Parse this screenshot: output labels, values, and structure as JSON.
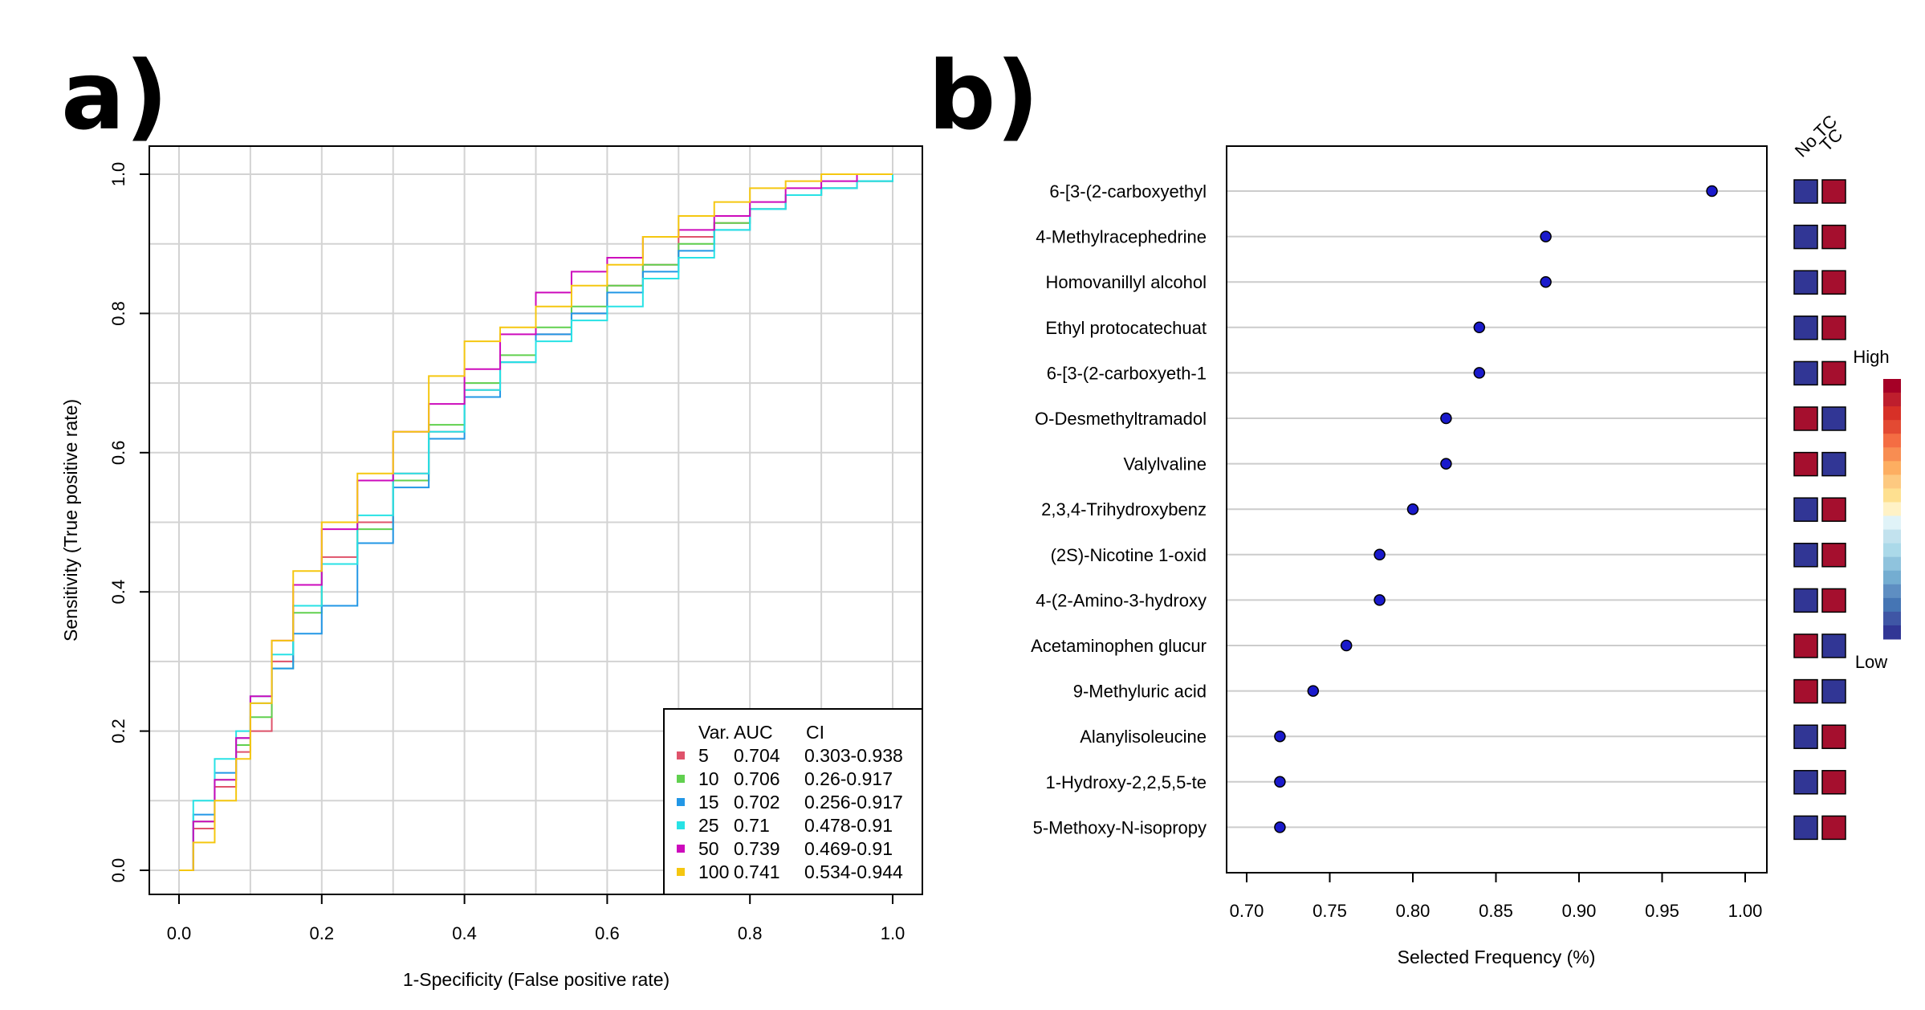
{
  "panels": {
    "a": {
      "label": "a)"
    },
    "b": {
      "label": "b)"
    }
  },
  "chart_data": [
    {
      "type": "line",
      "xlabel": "1-Specificity (False positive rate)",
      "ylabel": "Sensitivity (True positive rate)",
      "xlim": [
        0,
        1
      ],
      "ylim": [
        0,
        1
      ],
      "xticks": [
        "0.0",
        "0.2",
        "0.4",
        "0.6",
        "0.8",
        "1.0"
      ],
      "yticks": [
        "0.0",
        "0.2",
        "0.4",
        "0.6",
        "0.8",
        "1.0"
      ],
      "grid": true,
      "legend": {
        "placement": "bottom-right",
        "header": {
          "var": "Var.",
          "auc": "AUC",
          "ci": "CI"
        }
      },
      "series": [
        {
          "name": "5",
          "auc": "0.704",
          "ci": "0.303-0.938",
          "color": "#DF536B",
          "x": [
            0,
            0.02,
            0.05,
            0.08,
            0.1,
            0.13,
            0.16,
            0.2,
            0.25,
            0.3,
            0.35,
            0.4,
            0.45,
            0.5,
            0.55,
            0.6,
            0.65,
            0.7,
            0.75,
            0.8,
            0.85,
            0.9,
            0.95,
            1.0
          ],
          "y": [
            0,
            0.06,
            0.12,
            0.17,
            0.2,
            0.3,
            0.38,
            0.45,
            0.5,
            0.57,
            0.63,
            0.69,
            0.73,
            0.77,
            0.8,
            0.84,
            0.87,
            0.91,
            0.93,
            0.95,
            0.97,
            0.98,
            0.99,
            1.0
          ]
        },
        {
          "name": "10",
          "auc": "0.706",
          "ci": "0.26-0.917",
          "color": "#61D04F",
          "x": [
            0,
            0.02,
            0.05,
            0.08,
            0.1,
            0.13,
            0.16,
            0.2,
            0.25,
            0.3,
            0.35,
            0.4,
            0.45,
            0.5,
            0.55,
            0.6,
            0.65,
            0.7,
            0.75,
            0.8,
            0.85,
            0.9,
            0.95,
            1.0
          ],
          "y": [
            0,
            0.07,
            0.13,
            0.18,
            0.22,
            0.29,
            0.37,
            0.44,
            0.49,
            0.56,
            0.64,
            0.7,
            0.74,
            0.78,
            0.81,
            0.84,
            0.87,
            0.9,
            0.93,
            0.95,
            0.97,
            0.98,
            0.99,
            1.0
          ]
        },
        {
          "name": "15",
          "auc": "0.702",
          "ci": "0.256-0.917",
          "color": "#2297E6",
          "x": [
            0,
            0.02,
            0.05,
            0.08,
            0.1,
            0.13,
            0.16,
            0.2,
            0.25,
            0.3,
            0.35,
            0.4,
            0.45,
            0.5,
            0.55,
            0.6,
            0.65,
            0.7,
            0.75,
            0.8,
            0.85,
            0.9,
            0.95,
            1.0
          ],
          "y": [
            0,
            0.08,
            0.14,
            0.19,
            0.24,
            0.29,
            0.34,
            0.38,
            0.47,
            0.55,
            0.62,
            0.68,
            0.73,
            0.77,
            0.8,
            0.83,
            0.86,
            0.89,
            0.92,
            0.95,
            0.97,
            0.98,
            0.99,
            1.0
          ]
        },
        {
          "name": "25",
          "auc": "0.71",
          "ci": "0.478-0.91",
          "color": "#28E2E5",
          "x": [
            0,
            0.02,
            0.05,
            0.08,
            0.1,
            0.13,
            0.16,
            0.2,
            0.25,
            0.3,
            0.35,
            0.4,
            0.45,
            0.5,
            0.55,
            0.6,
            0.65,
            0.7,
            0.75,
            0.8,
            0.85,
            0.9,
            0.95,
            1.0
          ],
          "y": [
            0,
            0.1,
            0.16,
            0.2,
            0.25,
            0.31,
            0.38,
            0.44,
            0.51,
            0.57,
            0.63,
            0.69,
            0.73,
            0.76,
            0.79,
            0.81,
            0.85,
            0.88,
            0.92,
            0.95,
            0.97,
            0.98,
            0.99,
            1.0
          ]
        },
        {
          "name": "50",
          "auc": "0.739",
          "ci": "0.469-0.91",
          "color": "#CD0BBC",
          "x": [
            0,
            0.02,
            0.05,
            0.08,
            0.1,
            0.13,
            0.16,
            0.2,
            0.25,
            0.3,
            0.35,
            0.4,
            0.45,
            0.5,
            0.55,
            0.6,
            0.65,
            0.7,
            0.75,
            0.8,
            0.85,
            0.9,
            0.95,
            1.0
          ],
          "y": [
            0,
            0.07,
            0.13,
            0.19,
            0.25,
            0.33,
            0.41,
            0.49,
            0.56,
            0.63,
            0.67,
            0.72,
            0.77,
            0.83,
            0.86,
            0.88,
            0.91,
            0.92,
            0.94,
            0.96,
            0.98,
            0.99,
            1.0,
            1.0
          ]
        },
        {
          "name": "100",
          "auc": "0.741",
          "ci": "0.534-0.944",
          "color": "#F5C710",
          "x": [
            0,
            0.02,
            0.05,
            0.08,
            0.1,
            0.13,
            0.16,
            0.2,
            0.25,
            0.3,
            0.35,
            0.4,
            0.45,
            0.5,
            0.55,
            0.6,
            0.65,
            0.7,
            0.75,
            0.8,
            0.85,
            0.9,
            0.95,
            1.0
          ],
          "y": [
            0,
            0.04,
            0.1,
            0.16,
            0.24,
            0.33,
            0.43,
            0.5,
            0.57,
            0.63,
            0.71,
            0.76,
            0.78,
            0.81,
            0.84,
            0.87,
            0.91,
            0.94,
            0.96,
            0.98,
            0.99,
            1.0,
            1.0,
            1.0
          ]
        }
      ]
    },
    {
      "type": "scatter",
      "subtype": "dot-plot",
      "xlabel": "Selected Frequency (%)",
      "ylabel": "",
      "xlim": [
        0.69,
        1.01
      ],
      "xticks": [
        "0.70",
        "0.75",
        "0.80",
        "0.85",
        "0.90",
        "0.95",
        "1.00"
      ],
      "grid": "horizontal",
      "point_color": "#1A1ACC",
      "features": [
        {
          "label": "6-[3-(2-carboxyethyl",
          "value": 0.98,
          "no_tc": "low",
          "tc": "high"
        },
        {
          "label": "4-Methylracephedrine",
          "value": 0.88,
          "no_tc": "low",
          "tc": "high"
        },
        {
          "label": "Homovanillyl alcohol",
          "value": 0.88,
          "no_tc": "low",
          "tc": "high"
        },
        {
          "label": "Ethyl protocatechuat",
          "value": 0.84,
          "no_tc": "low",
          "tc": "high"
        },
        {
          "label": "6-[3-(2-carboxyeth-1",
          "value": 0.84,
          "no_tc": "low",
          "tc": "high"
        },
        {
          "label": "O-Desmethyltramadol",
          "value": 0.82,
          "no_tc": "high",
          "tc": "low"
        },
        {
          "label": "Valylvaline",
          "value": 0.82,
          "no_tc": "high",
          "tc": "low"
        },
        {
          "label": "2,3,4-Trihydroxybenz",
          "value": 0.8,
          "no_tc": "low",
          "tc": "high"
        },
        {
          "label": "(2S)-Nicotine 1-oxid",
          "value": 0.78,
          "no_tc": "low",
          "tc": "high"
        },
        {
          "label": "4-(2-Amino-3-hydroxy",
          "value": 0.78,
          "no_tc": "low",
          "tc": "high"
        },
        {
          "label": "Acetaminophen glucur",
          "value": 0.76,
          "no_tc": "high",
          "tc": "low"
        },
        {
          "label": "9-Methyluric acid",
          "value": 0.74,
          "no_tc": "high",
          "tc": "low"
        },
        {
          "label": "Alanylisoleucine",
          "value": 0.72,
          "no_tc": "low",
          "tc": "high"
        },
        {
          "label": "1-Hydroxy-2,2,5,5-te",
          "value": 0.72,
          "no_tc": "low",
          "tc": "high"
        },
        {
          "label": "5-Methoxy-N-isopropy",
          "value": 0.72,
          "no_tc": "low",
          "tc": "high"
        }
      ],
      "groups": [
        "No TC",
        "TC"
      ],
      "colorbar": {
        "high_label": "High",
        "low_label": "Low",
        "high_color": "#A50F2E",
        "low_color": "#313695",
        "scale": [
          "#A50026",
          "#BE1E2D",
          "#D73027",
          "#E34A33",
          "#F46D43",
          "#F88D52",
          "#FDAE61",
          "#FDC980",
          "#FEE090",
          "#FFF2C6",
          "#E0F3F8",
          "#C2E2EE",
          "#ABD9E9",
          "#8FC3DD",
          "#74ADD1",
          "#5E8EC2",
          "#4575B4",
          "#3F56A5",
          "#313695"
        ]
      }
    }
  ]
}
